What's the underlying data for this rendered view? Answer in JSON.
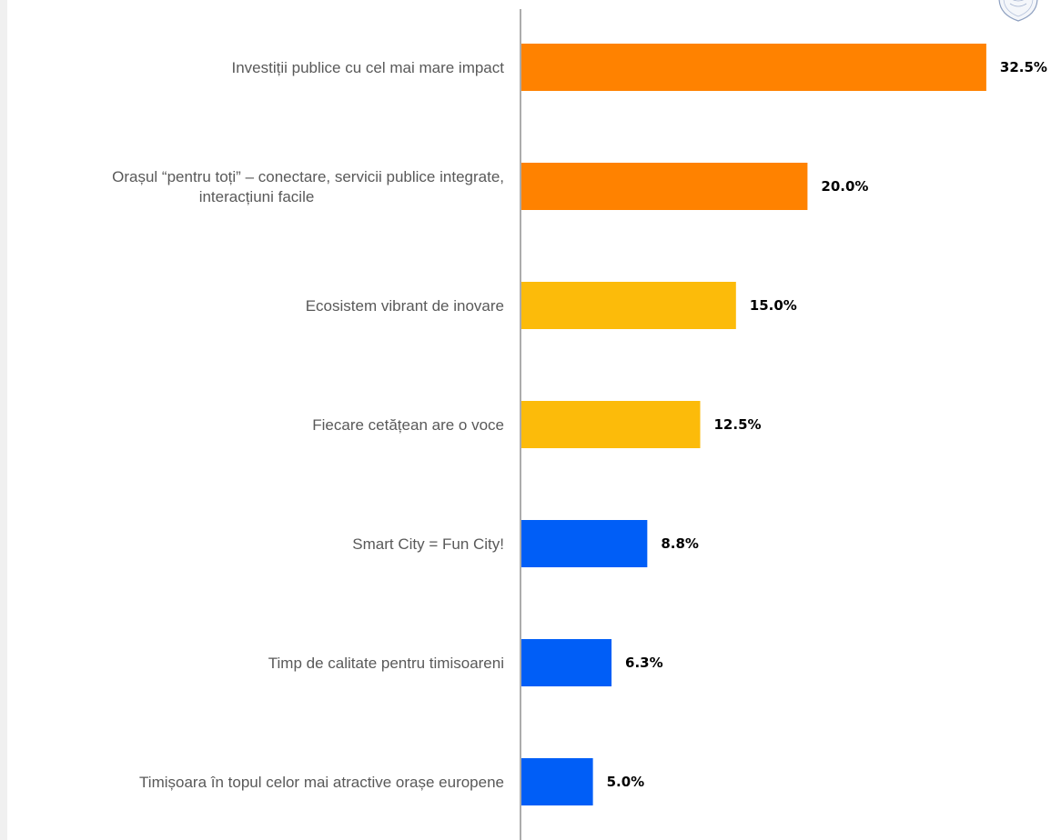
{
  "chart_data": {
    "type": "bar",
    "orientation": "horizontal",
    "categories": [
      [
        "Investiții publice cu cel mai mare impact"
      ],
      [
        "Orașul “pentru toți” – conectare, servicii publice integrate,",
        "interacțiuni facile"
      ],
      [
        "Ecosistem vibrant de inovare"
      ],
      [
        "Fiecare cetățean are o voce"
      ],
      [
        "Smart City = Fun City!"
      ],
      [
        "Timp de calitate pentru timisoareni"
      ],
      [
        "Timișoara în topul celor mai atractive orașe europene"
      ]
    ],
    "values": [
      32.5,
      20.0,
      15.0,
      12.5,
      8.8,
      6.3,
      5.0
    ],
    "value_labels": [
      "32.5%",
      "20.0%",
      "15.0%",
      "12.5%",
      "8.8%",
      "6.3%",
      "5.0%"
    ],
    "bar_colors": [
      "#ff8200",
      "#ff8200",
      "#fcbb0a",
      "#fcbb0a",
      "#005ef7",
      "#005ef7",
      "#005ef7"
    ],
    "xlim": [
      0,
      35
    ],
    "title": "",
    "xlabel": "",
    "ylabel": "",
    "grid": false,
    "legend": "none"
  },
  "colors": {
    "axis_line": "#7f7f7f",
    "category_text": "#595959",
    "value_text": "#000000"
  },
  "icons": {
    "logo": "coat-of-arms-icon"
  }
}
